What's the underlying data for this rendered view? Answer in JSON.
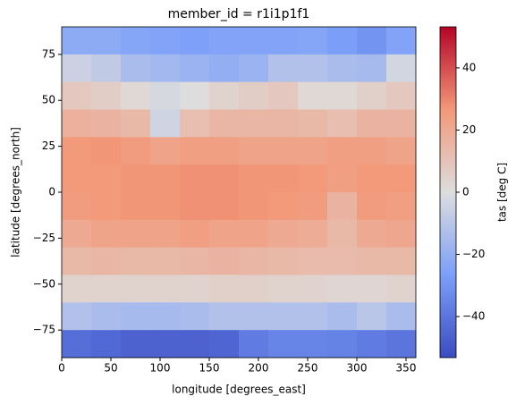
{
  "chart_data": {
    "type": "heatmap",
    "title": "member_id = r1i1p1f1",
    "x_label": "longitude [degrees_east]",
    "y_label": "latitude [degrees_north]",
    "colorbar_label": "tas [deg C]",
    "cmap": "coolwarm",
    "x": [
      15,
      45,
      75,
      105,
      135,
      165,
      195,
      225,
      255,
      285,
      315,
      345
    ],
    "y": [
      82.5,
      67.5,
      52.5,
      37.5,
      22.5,
      7.5,
      -7.5,
      -22.5,
      -37.5,
      -52.5,
      -67.5,
      -82.5
    ],
    "values": [
      [
        -22,
        -22,
        -24,
        -25,
        -26,
        -25,
        -25,
        -25,
        -24,
        -27,
        -30,
        -25
      ],
      [
        -5,
        -8,
        -14,
        -16,
        -18,
        -20,
        -18,
        -12,
        -12,
        -14,
        -15,
        -3
      ],
      [
        8,
        6,
        2,
        -2,
        0,
        4,
        6,
        8,
        2,
        2,
        5,
        8
      ],
      [
        17,
        16,
        14,
        -4,
        12,
        15,
        15,
        15,
        14,
        12,
        16,
        16
      ],
      [
        26,
        27,
        25,
        22,
        24,
        24,
        22,
        22,
        22,
        24,
        24,
        22
      ],
      [
        26,
        26,
        27,
        27,
        28,
        28,
        27,
        27,
        26,
        24,
        26,
        26
      ],
      [
        25,
        26,
        27,
        27,
        28,
        28,
        27,
        26,
        25,
        16,
        25,
        24
      ],
      [
        20,
        22,
        22,
        22,
        24,
        22,
        22,
        20,
        19,
        14,
        20,
        21
      ],
      [
        14,
        15,
        14,
        14,
        15,
        16,
        15,
        14,
        13,
        13,
        14,
        14
      ],
      [
        4,
        4,
        4,
        4,
        4,
        5,
        5,
        4,
        4,
        3,
        3,
        4
      ],
      [
        -12,
        -14,
        -15,
        -15,
        -14,
        -12,
        -12,
        -12,
        -12,
        -14,
        -10,
        -14
      ],
      [
        -42,
        -44,
        -46,
        -46,
        -46,
        -45,
        -38,
        -35,
        -35,
        -36,
        -38,
        -40
      ]
    ],
    "xlim": [
      0,
      360
    ],
    "ylim": [
      -90,
      90
    ],
    "clim": [
      -53.2,
      53.2
    ],
    "xticks": [
      0,
      50,
      100,
      150,
      200,
      250,
      300,
      350
    ],
    "yticks": [
      {
        "value": -75,
        "label": "−75"
      },
      {
        "value": -50,
        "label": "−50"
      },
      {
        "value": -25,
        "label": "−25"
      },
      0,
      25,
      50,
      75
    ],
    "cticks": [
      {
        "value": -40,
        "label": "−40"
      },
      {
        "value": -20,
        "label": "−20"
      },
      0,
      20,
      40
    ]
  }
}
